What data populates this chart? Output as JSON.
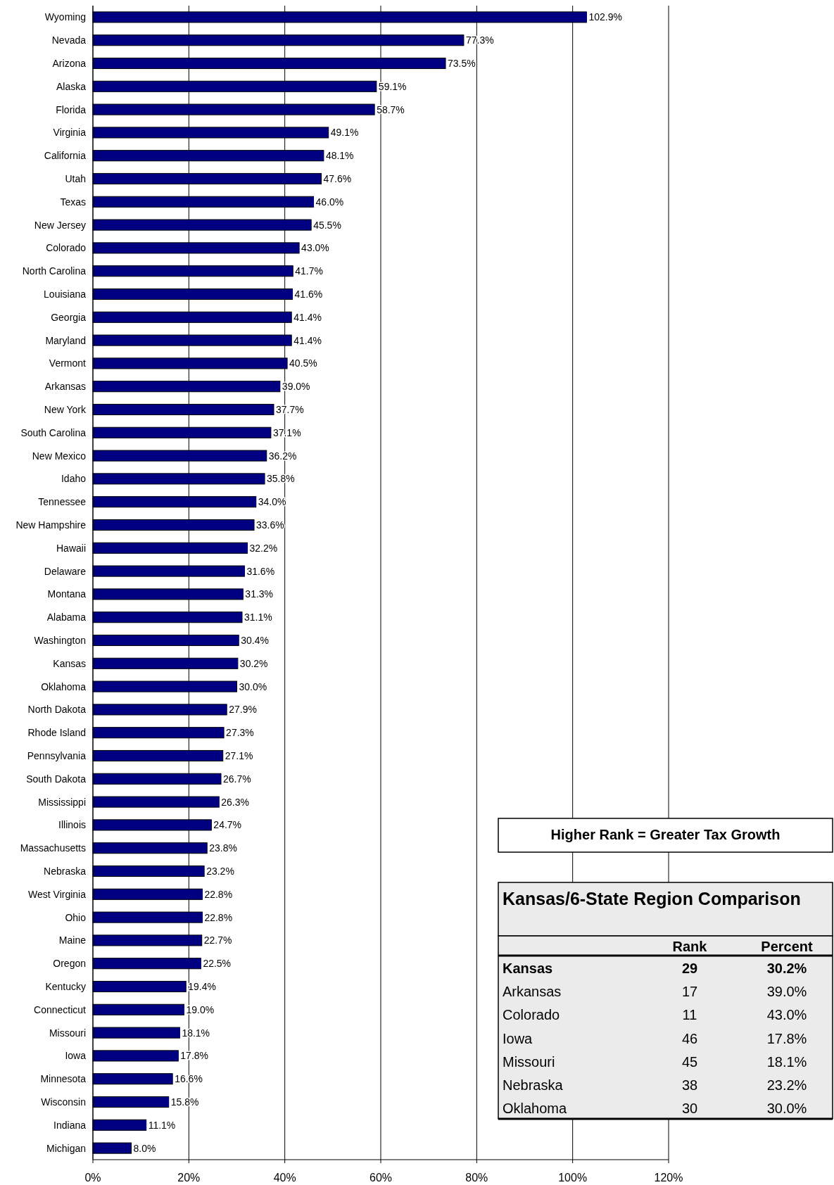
{
  "chart_data": {
    "type": "bar",
    "orientation": "horizontal",
    "grid": "x",
    "categories": [
      "Wyoming",
      "Nevada",
      "Arizona",
      "Alaska",
      "Florida",
      "Virginia",
      "California",
      "Utah",
      "Texas",
      "New Jersey",
      "Colorado",
      "North Carolina",
      "Louisiana",
      "Georgia",
      "Maryland",
      "Vermont",
      "Arkansas",
      "New York",
      "South Carolina",
      "New Mexico",
      "Idaho",
      "Tennessee",
      "New Hampshire",
      "Hawaii",
      "Delaware",
      "Montana",
      "Alabama",
      "Washington",
      "Kansas",
      "Oklahoma",
      "North Dakota",
      "Rhode Island",
      "Pennsylvania",
      "South Dakota",
      "Mississippi",
      "Illinois",
      "Massachusetts",
      "Nebraska",
      "West Virginia",
      "Ohio",
      "Maine",
      "Oregon",
      "Kentucky",
      "Connecticut",
      "Missouri",
      "Iowa",
      "Minnesota",
      "Wisconsin",
      "Indiana",
      "Michigan"
    ],
    "values": [
      102.9,
      77.3,
      73.5,
      59.1,
      58.7,
      49.1,
      48.1,
      47.6,
      46.0,
      45.5,
      43.0,
      41.7,
      41.6,
      41.4,
      41.4,
      40.5,
      39.0,
      37.7,
      37.1,
      36.2,
      35.8,
      34.0,
      33.6,
      32.2,
      31.6,
      31.3,
      31.1,
      30.4,
      30.2,
      30.0,
      27.9,
      27.3,
      27.1,
      26.7,
      26.3,
      24.7,
      23.8,
      23.2,
      22.8,
      22.8,
      22.7,
      22.5,
      19.4,
      19.0,
      18.1,
      17.8,
      16.6,
      15.8,
      11.1,
      8.0
    ],
    "value_labels": [
      "102.9%",
      "77.3%",
      "73.5%",
      "59.1%",
      "58.7%",
      "49.1%",
      "48.1%",
      "47.6%",
      "46.0%",
      "45.5%",
      "43.0%",
      "41.7%",
      "41.6%",
      "41.4%",
      "41.4%",
      "40.5%",
      "39.0%",
      "37.7%",
      "37.1%",
      "36.2%",
      "35.8%",
      "34.0%",
      "33.6%",
      "32.2%",
      "31.6%",
      "31.3%",
      "31.1%",
      "30.4%",
      "30.2%",
      "30.0%",
      "27.9%",
      "27.3%",
      "27.1%",
      "26.7%",
      "26.3%",
      "24.7%",
      "23.8%",
      "23.2%",
      "22.8%",
      "22.8%",
      "22.7%",
      "22.5%",
      "19.4%",
      "19.0%",
      "18.1%",
      "17.8%",
      "16.6%",
      "15.8%",
      "11.1%",
      "8.0%"
    ],
    "color": "#000080",
    "xlim": [
      0,
      120
    ],
    "xticks": [
      {
        "value": 0,
        "label": "0%"
      },
      {
        "value": 20,
        "label": "20%"
      },
      {
        "value": 40,
        "label": "40%"
      },
      {
        "value": 60,
        "label": "60%"
      },
      {
        "value": 80,
        "label": "80%"
      },
      {
        "value": 100,
        "label": "100%"
      },
      {
        "value": 120,
        "label": "120%"
      }
    ],
    "annotations": [
      "Higher Rank = Greater Tax Growth",
      "Kansas/6-State Region Comparison",
      "Rank",
      "Percent",
      "Kansas",
      "29",
      "30.2%",
      "Arkansas",
      "17",
      "39.0%",
      "Colorado",
      "11",
      "43.0%",
      "Iowa",
      "46",
      "17.8%",
      "Missouri",
      "45",
      "18.1%",
      "Nebraska",
      "38",
      "23.2%",
      "Oklahoma",
      "30",
      "30.0%"
    ]
  }
}
